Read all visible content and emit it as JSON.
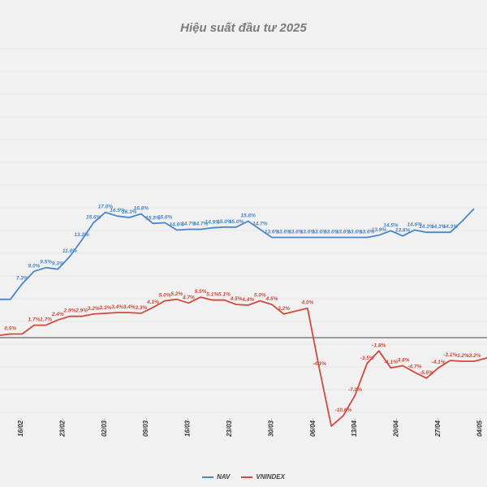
{
  "colors": {
    "nav": "#4a86c8",
    "vnindex": "#d24a3c",
    "grid": "#dcdcdc",
    "zero": "#444444"
  },
  "chart_data": {
    "type": "line",
    "title": "Hiệu suất đầu tư 2025",
    "xlabel": "",
    "ylabel": "",
    "ylim": [
      -13,
      24
    ],
    "grid": true,
    "legend": "bottom",
    "ticks": [
      "16/02",
      "23/02",
      "02/03",
      "09/03",
      "16/03",
      "23/03",
      "30/03",
      "06/04",
      "13/04",
      "20/04",
      "27/04",
      "04/05"
    ],
    "series": [
      {
        "name": "NAV",
        "color_key": "nav",
        "points": [
          {
            "x": 0,
            "y": 5.2,
            "label": ""
          },
          {
            "x": 1,
            "y": 5.2,
            "label": ""
          },
          {
            "x": 2,
            "y": 7.3,
            "label": "7.3%"
          },
          {
            "x": 3,
            "y": 9.0,
            "label": "9.0%"
          },
          {
            "x": 4,
            "y": 9.5,
            "label": "9.5%"
          },
          {
            "x": 5,
            "y": 9.3,
            "label": "9.3%"
          },
          {
            "x": 6,
            "y": 11.0,
            "label": "11.0%"
          },
          {
            "x": 7,
            "y": 13.2,
            "label": "13.2%"
          },
          {
            "x": 8,
            "y": 15.6,
            "label": "15.6%"
          },
          {
            "x": 9,
            "y": 17.0,
            "label": "17.0%"
          },
          {
            "x": 10,
            "y": 16.5,
            "label": "16.5%"
          },
          {
            "x": 11,
            "y": 16.3,
            "label": "16.3%"
          },
          {
            "x": 12,
            "y": 16.8,
            "label": "16.8%"
          },
          {
            "x": 13,
            "y": 15.5,
            "label": "15.5%"
          },
          {
            "x": 14,
            "y": 15.6,
            "label": "15.6%"
          },
          {
            "x": 15,
            "y": 14.6,
            "label": "14.6%"
          },
          {
            "x": 16,
            "y": 14.7,
            "label": "14.7%"
          },
          {
            "x": 17,
            "y": 14.7,
            "label": "14.7%"
          },
          {
            "x": 18,
            "y": 14.9,
            "label": "14.9%"
          },
          {
            "x": 19,
            "y": 15.0,
            "label": "15.0%"
          },
          {
            "x": 20,
            "y": 15.0,
            "label": "15.0%"
          },
          {
            "x": 21,
            "y": 15.8,
            "label": "15.8%"
          },
          {
            "x": 22,
            "y": 14.7,
            "label": "14.7%"
          },
          {
            "x": 23,
            "y": 13.6,
            "label": "13.6%"
          },
          {
            "x": 24,
            "y": 13.6,
            "label": "13.6%"
          },
          {
            "x": 25,
            "y": 13.6,
            "label": "13.6%"
          },
          {
            "x": 26,
            "y": 13.6,
            "label": "13.6%"
          },
          {
            "x": 27,
            "y": 13.6,
            "label": "13.6%"
          },
          {
            "x": 28,
            "y": 13.6,
            "label": "13.6%"
          },
          {
            "x": 29,
            "y": 13.6,
            "label": "13.6%"
          },
          {
            "x": 30,
            "y": 13.6,
            "label": "13.6%"
          },
          {
            "x": 31,
            "y": 13.6,
            "label": "13.6%"
          },
          {
            "x": 32,
            "y": 13.9,
            "label": "13.9%"
          },
          {
            "x": 33,
            "y": 14.5,
            "label": "14.5%"
          },
          {
            "x": 34,
            "y": 13.8,
            "label": "13.8%"
          },
          {
            "x": 35,
            "y": 14.6,
            "label": "14.6%"
          },
          {
            "x": 36,
            "y": 14.3,
            "label": "14.3%"
          },
          {
            "x": 37,
            "y": 14.3,
            "label": "14.3%"
          },
          {
            "x": 38,
            "y": 14.3,
            "label": "14.3%"
          },
          {
            "x": 39,
            "y": 15.8,
            "label": ""
          },
          {
            "x": 40,
            "y": 17.5,
            "label": ""
          }
        ]
      },
      {
        "name": "VNINDEX",
        "color_key": "vnindex",
        "points": [
          {
            "x": 0,
            "y": 0.3,
            "label": ""
          },
          {
            "x": 1,
            "y": 0.5,
            "label": "0.5%"
          },
          {
            "x": 2,
            "y": 0.5,
            "label": ""
          },
          {
            "x": 3,
            "y": 1.7,
            "label": "1.7%"
          },
          {
            "x": 4,
            "y": 1.7,
            "label": "1.7%"
          },
          {
            "x": 5,
            "y": 2.4,
            "label": "2.4%"
          },
          {
            "x": 6,
            "y": 2.9,
            "label": "2.9%"
          },
          {
            "x": 7,
            "y": 2.9,
            "label": "2.9%"
          },
          {
            "x": 8,
            "y": 3.2,
            "label": "3.2%"
          },
          {
            "x": 9,
            "y": 3.3,
            "label": "3.3%"
          },
          {
            "x": 10,
            "y": 3.4,
            "label": "3.4%"
          },
          {
            "x": 11,
            "y": 3.4,
            "label": "3.4%"
          },
          {
            "x": 12,
            "y": 3.3,
            "label": "3.3%"
          },
          {
            "x": 13,
            "y": 4.1,
            "label": "4.1%"
          },
          {
            "x": 14,
            "y": 5.0,
            "label": "5.0%"
          },
          {
            "x": 15,
            "y": 5.2,
            "label": "5.2%"
          },
          {
            "x": 16,
            "y": 4.7,
            "label": "4.7%"
          },
          {
            "x": 17,
            "y": 5.5,
            "label": "5.5%"
          },
          {
            "x": 18,
            "y": 5.1,
            "label": "5.1%"
          },
          {
            "x": 19,
            "y": 5.1,
            "label": "5.1%"
          },
          {
            "x": 20,
            "y": 4.5,
            "label": "4.5%"
          },
          {
            "x": 21,
            "y": 4.4,
            "label": "4.4%"
          },
          {
            "x": 22,
            "y": 5.0,
            "label": "5.0%"
          },
          {
            "x": 23,
            "y": 4.5,
            "label": "4.5%"
          },
          {
            "x": 24,
            "y": 3.2,
            "label": "3.2%"
          },
          {
            "x": 25,
            "y": 3.6,
            "label": ""
          },
          {
            "x": 26,
            "y": 4.0,
            "label": "4.0%"
          },
          {
            "x": 27,
            "y": -4.3,
            "label": "-4.3%"
          },
          {
            "x": 28,
            "y": -12.0,
            "label": ""
          },
          {
            "x": 29,
            "y": -10.6,
            "label": "-10.6%"
          },
          {
            "x": 30,
            "y": -7.8,
            "label": "-7.8%"
          },
          {
            "x": 31,
            "y": -3.5,
            "label": "-3.5%"
          },
          {
            "x": 32,
            "y": -1.8,
            "label": "-1.8%"
          },
          {
            "x": 33,
            "y": -4.1,
            "label": "-4.1%"
          },
          {
            "x": 34,
            "y": -3.8,
            "label": "-3.8%"
          },
          {
            "x": 35,
            "y": -4.7,
            "label": "-4.7%"
          },
          {
            "x": 36,
            "y": -5.5,
            "label": "-5.5%"
          },
          {
            "x": 37,
            "y": -4.1,
            "label": "-4.1%"
          },
          {
            "x": 38,
            "y": -3.1,
            "label": "-3.1%"
          },
          {
            "x": 39,
            "y": -3.2,
            "label": "-3.2%"
          },
          {
            "x": 40,
            "y": -3.2,
            "label": "-3.2%"
          },
          {
            "x": 41,
            "y": -2.8,
            "label": ""
          },
          {
            "x": 42,
            "y": -2.0,
            "label": ""
          }
        ]
      }
    ]
  }
}
